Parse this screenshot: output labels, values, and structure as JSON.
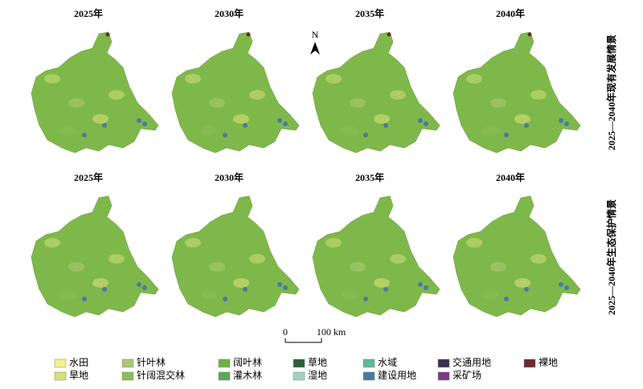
{
  "rows": [
    {
      "label": "2025—2040年现有发展情景",
      "panels": [
        "2025年",
        "2030年",
        "2035年",
        "2040年"
      ]
    },
    {
      "label": "2025—2040年生态保护情景",
      "panels": [
        "2025年",
        "2030年",
        "2035年",
        "2040年"
      ]
    }
  ],
  "north": "N",
  "scale_bar": {
    "start": "0",
    "end": "100 km"
  },
  "legend": [
    {
      "label": "水田",
      "color": "#f5ef8c"
    },
    {
      "label": "旱地",
      "color": "#d6df78"
    },
    {
      "label": "针叶林",
      "color": "#a9c873"
    },
    {
      "label": "针阔混交林",
      "color": "#8bbc58"
    },
    {
      "label": "阔叶林",
      "color": "#6eb143"
    },
    {
      "label": "灌木林",
      "color": "#5ba85c"
    },
    {
      "label": "草地",
      "color": "#2f5e3b"
    },
    {
      "label": "湿地",
      "color": "#9fd1c1"
    },
    {
      "label": "水域",
      "color": "#5db99b"
    },
    {
      "label": "建设用地",
      "color": "#4a7ba1"
    },
    {
      "label": "交通用地",
      "color": "#3a3050"
    },
    {
      "label": "采矿场",
      "color": "#7b3a8b"
    },
    {
      "label": "裸地",
      "color": "#6e2838"
    }
  ]
}
